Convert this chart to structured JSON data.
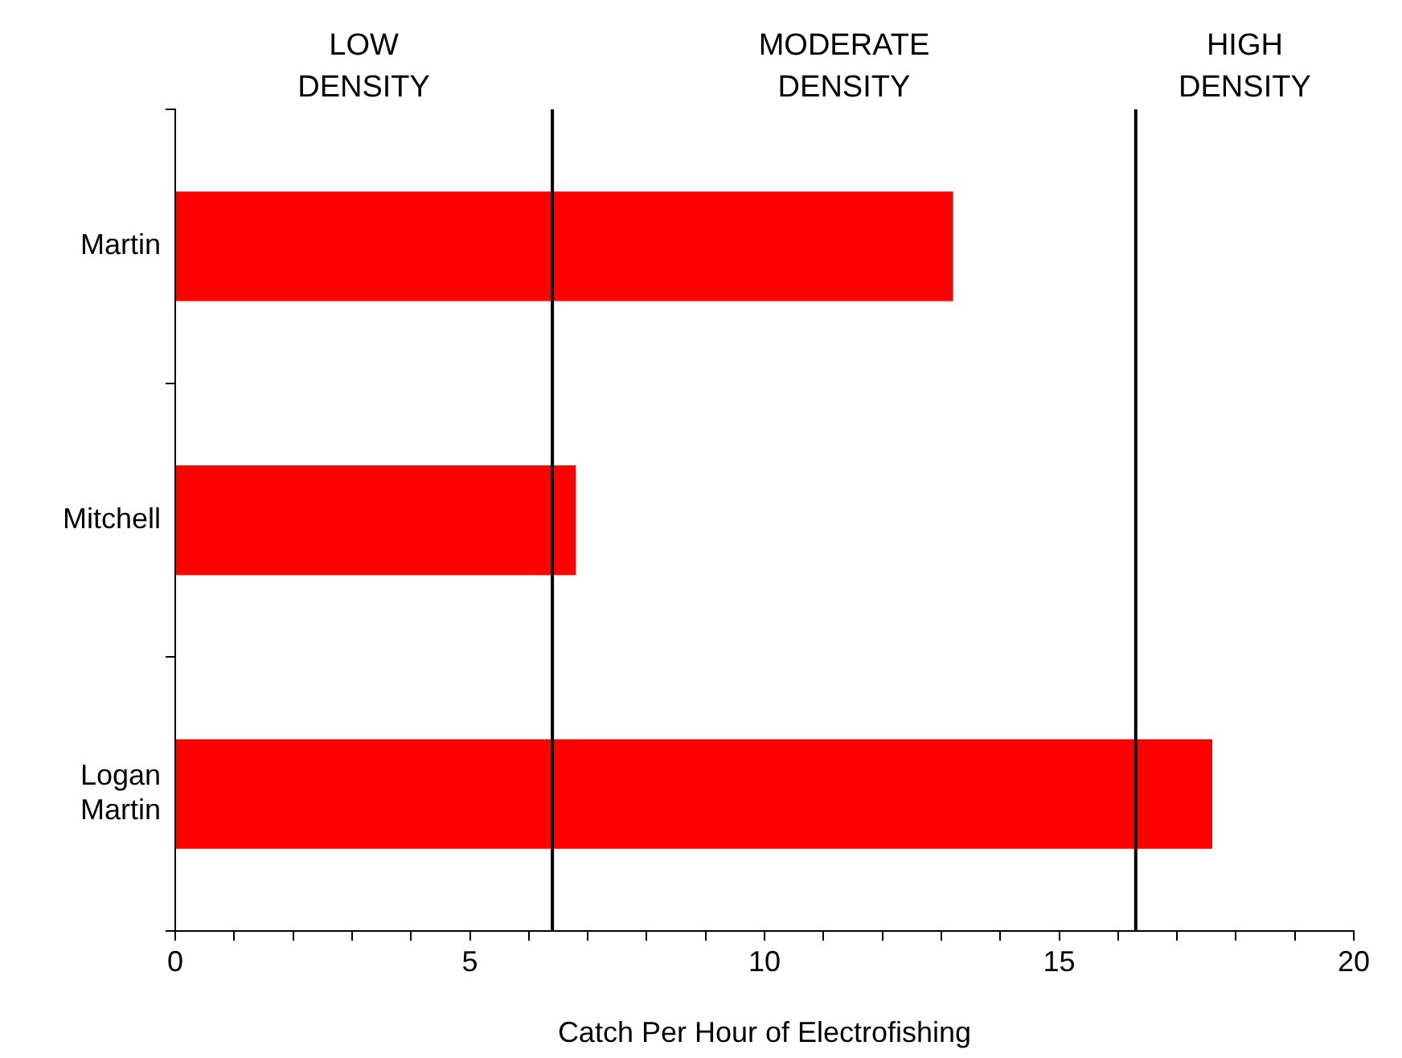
{
  "chart_data": {
    "type": "bar",
    "orientation": "horizontal",
    "xlabel": "Catch Per Hour of Electrofishing",
    "categories": [
      "Martin",
      "Mitchell",
      "Logan Martin"
    ],
    "values": [
      13.2,
      6.8,
      17.6
    ],
    "color": "#ff0000",
    "xlim": [
      0,
      20
    ],
    "xticks": [
      0,
      {
        "value": 1,
        "label": null
      },
      {
        "value": 2,
        "label": null
      },
      {
        "value": 3,
        "label": null
      },
      {
        "value": 4,
        "label": null
      },
      5,
      {
        "value": 6,
        "label": null
      },
      {
        "value": 7,
        "label": null
      },
      {
        "value": 8,
        "label": null
      },
      {
        "value": 9,
        "label": null
      },
      10,
      {
        "value": 11,
        "label": null
      },
      {
        "value": 12,
        "label": null
      },
      {
        "value": 13,
        "label": null
      },
      {
        "value": 14,
        "label": null
      },
      15,
      {
        "value": 16,
        "label": null
      },
      {
        "value": 17,
        "label": null
      },
      {
        "value": 18,
        "label": null
      },
      {
        "value": 19,
        "label": null
      },
      20
    ],
    "ref_lines": [
      {
        "axis": "x",
        "value": 6.4,
        "color": "#000000"
      },
      {
        "axis": "x",
        "value": 16.3,
        "color": "#000000"
      }
    ],
    "annotations": [
      "LOW DENSITY",
      "MODERATE DENSITY",
      "HIGH DENSITY"
    ],
    "grid": false,
    "legend": false
  }
}
